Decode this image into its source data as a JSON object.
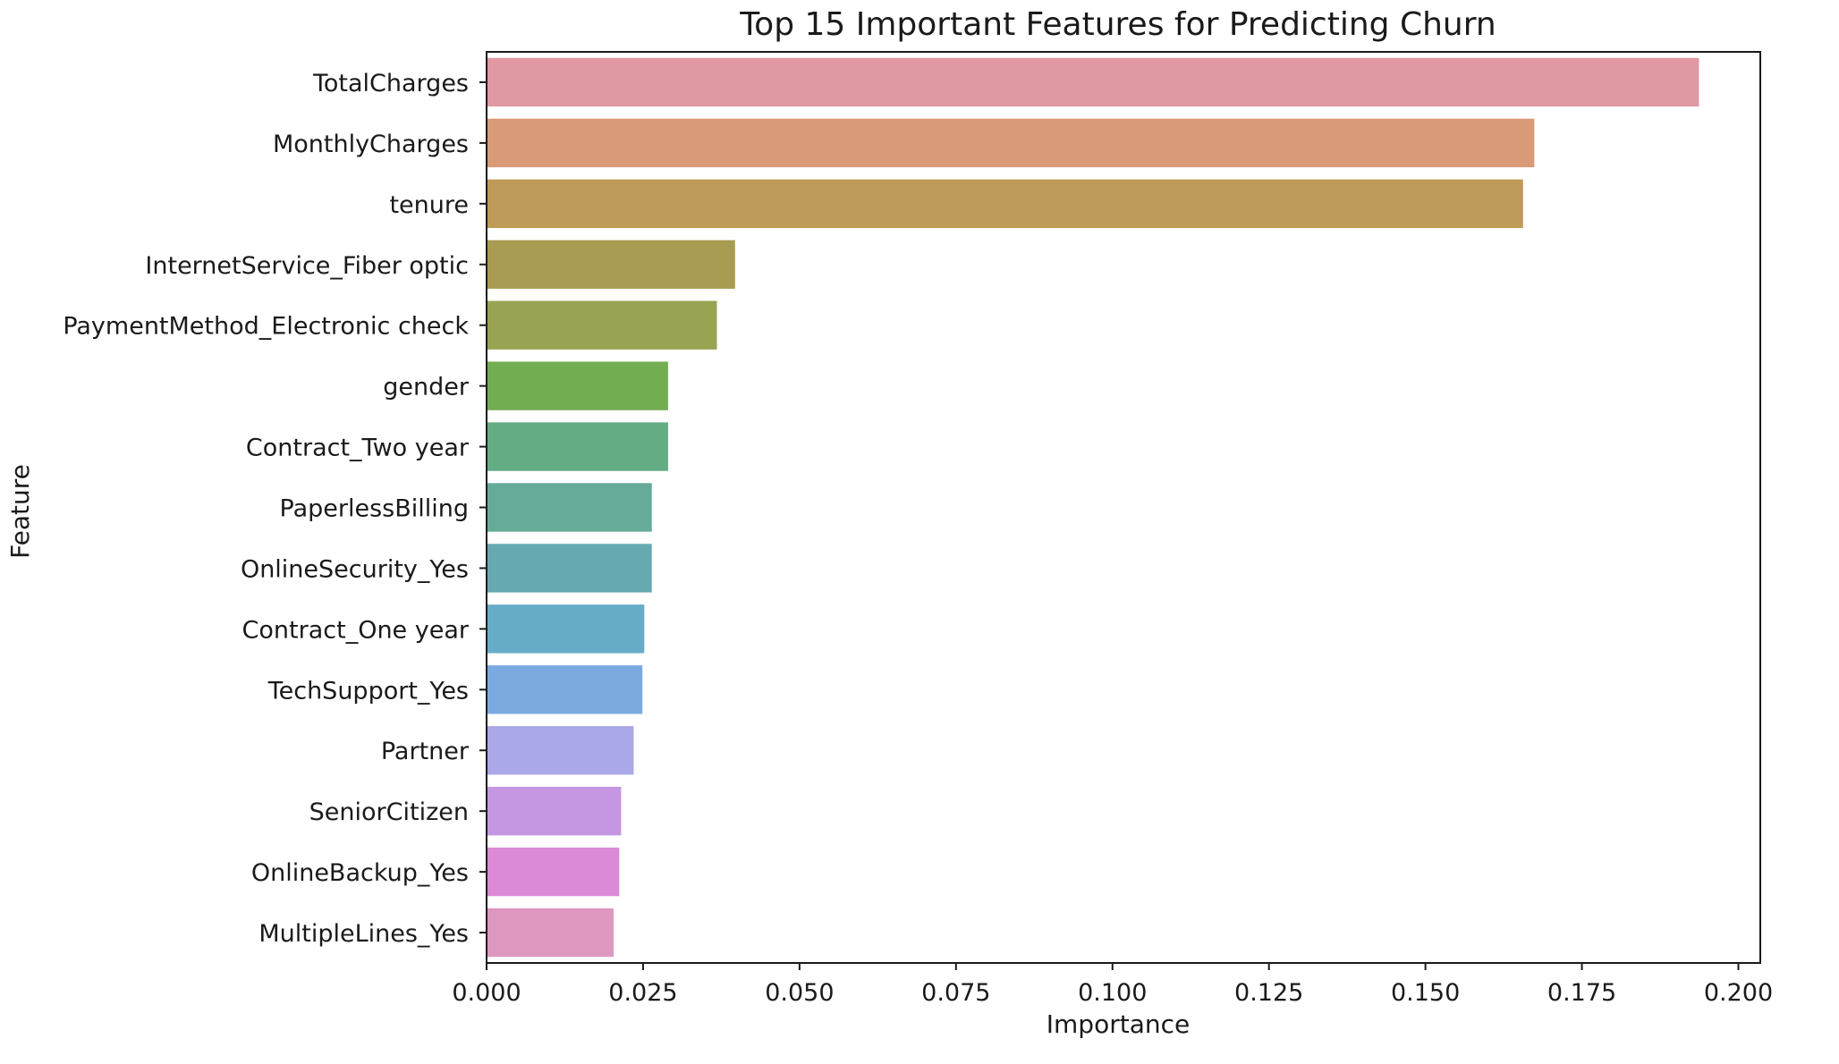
{
  "chart_data": {
    "type": "bar",
    "orientation": "horizontal",
    "title": "Top 15 Important Features for Predicting Churn",
    "xlabel": "Importance",
    "ylabel": "Feature",
    "xlim": [
      0,
      0.2035
    ],
    "xticks": [
      0.0,
      0.025,
      0.05,
      0.075,
      0.1,
      0.125,
      0.15,
      0.175,
      0.2
    ],
    "xtick_labels": [
      "0.000",
      "0.025",
      "0.050",
      "0.075",
      "0.100",
      "0.125",
      "0.150",
      "0.175",
      "0.200"
    ],
    "grid": false,
    "legend": "none",
    "categories": [
      "TotalCharges",
      "MonthlyCharges",
      "tenure",
      "InternetService_Fiber optic",
      "PaymentMethod_Electronic check",
      "gender",
      "Contract_Two year",
      "PaperlessBilling",
      "OnlineSecurity_Yes",
      "Contract_One year",
      "TechSupport_Yes",
      "Partner",
      "SeniorCitizen",
      "OnlineBackup_Yes",
      "MultipleLines_Yes"
    ],
    "values": [
      0.1937,
      0.1674,
      0.1656,
      0.0397,
      0.0368,
      0.029,
      0.029,
      0.0264,
      0.0264,
      0.0252,
      0.0249,
      0.0235,
      0.0215,
      0.0212,
      0.0203
    ],
    "colors": [
      "#e098a3",
      "#d99a78",
      "#c09a58",
      "#a89c52",
      "#99a352",
      "#73ad52",
      "#63ac84",
      "#66aa9a",
      "#66a9b0",
      "#67acc6",
      "#7aaae0",
      "#aaa8e6",
      "#c597e2",
      "#dc8ad8",
      "#dd98c0"
    ]
  }
}
